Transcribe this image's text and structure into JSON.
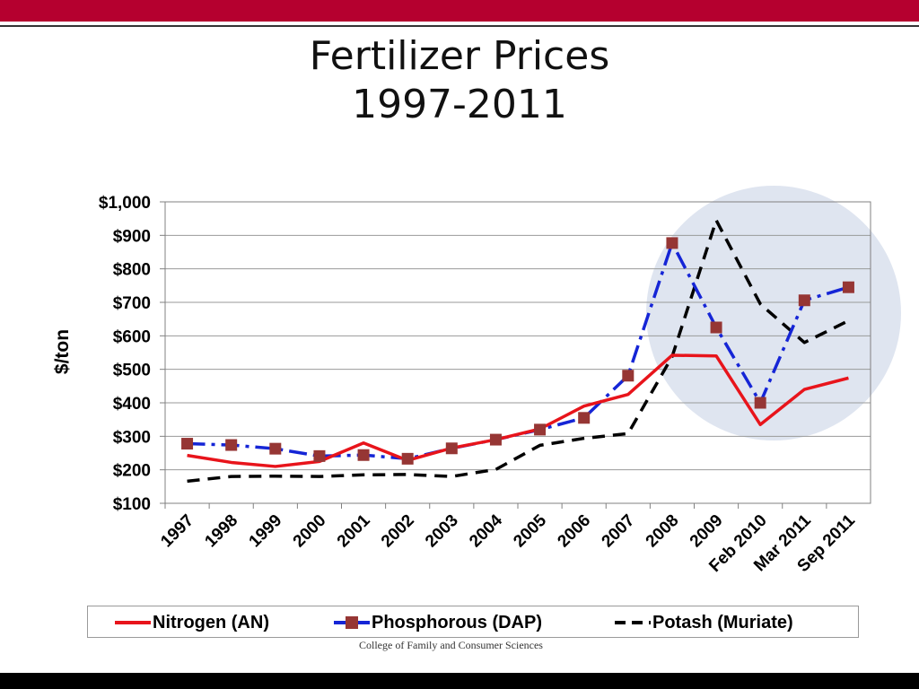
{
  "slide": {
    "title_line1": "Fertilizer Prices",
    "title_line2": "1997-2011",
    "footer": "College of Family and Consumer Sciences"
  },
  "colors": {
    "header_bar": "#b5002f",
    "highlight_circle": "#dfe5f0",
    "nitrogen": "#e8141b",
    "phosphorous": "#1525d6",
    "phosphorous_marker": "#963634",
    "potash": "#000000"
  },
  "chart_data": {
    "type": "line",
    "title": "",
    "xlabel": "",
    "ylabel": "$/ton",
    "ylim": [
      100,
      1000
    ],
    "yticks": [
      "$1,000",
      "$900",
      "$800",
      "$700",
      "$600",
      "$500",
      "$400",
      "$300",
      "$200",
      "$100"
    ],
    "grid": true,
    "legend_position": "bottom",
    "categories": [
      "1997",
      "1998",
      "1999",
      "2000",
      "2001",
      "2002",
      "2003",
      "2004",
      "2005",
      "2006",
      "2007",
      "2008",
      "2009",
      "Feb 2010",
      "Mar 2011",
      "Sep 2011"
    ],
    "series": [
      {
        "name": "Nitrogen (AN)",
        "style": "solid",
        "values": [
          243,
          222,
          210,
          225,
          280,
          228,
          265,
          290,
          322,
          390,
          425,
          542,
          540,
          335,
          440,
          474
        ]
      },
      {
        "name": "Phosphorous (DAP)",
        "style": "dash-dot-markers",
        "values": [
          278,
          274,
          263,
          241,
          244,
          233,
          264,
          290,
          320,
          355,
          481,
          877,
          625,
          400,
          706,
          745
        ]
      },
      {
        "name": "Potash (Muriate)",
        "style": "dashed",
        "values": [
          166,
          180,
          181,
          180,
          185,
          186,
          180,
          201,
          273,
          294,
          308,
          538,
          945,
          695,
          580,
          645
        ]
      }
    ]
  }
}
